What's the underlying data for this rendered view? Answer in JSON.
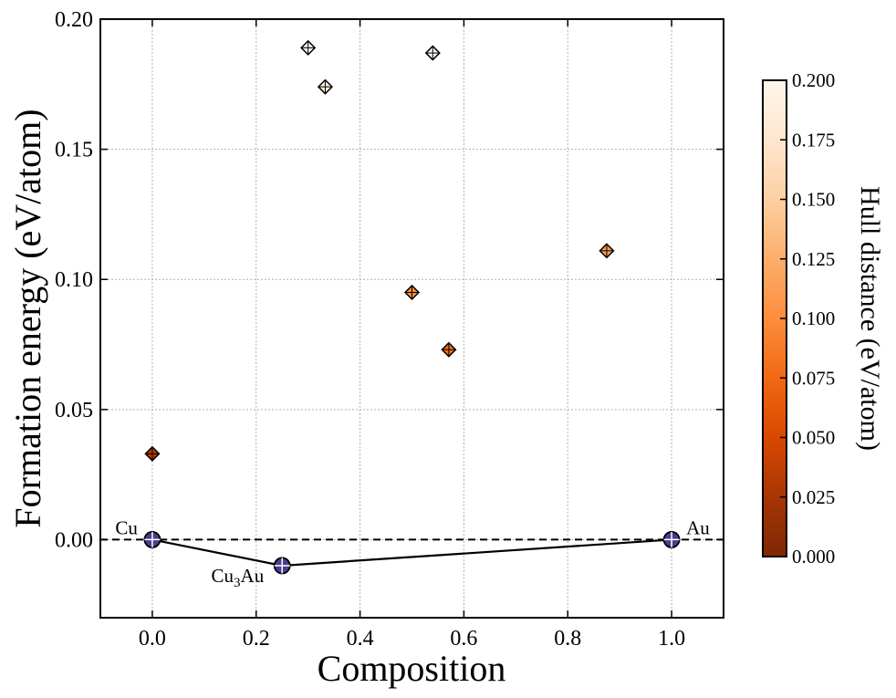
{
  "chart_data": {
    "type": "scatter",
    "xlabel": "Composition",
    "ylabel": "Formation energy (eV/atom)",
    "xlim": [
      -0.1,
      1.1
    ],
    "ylim": [
      -0.03,
      0.2
    ],
    "xticks": [
      "0.0",
      "0.2",
      "0.4",
      "0.6",
      "0.8",
      "1.0"
    ],
    "yticks": [
      "0.00",
      "0.05",
      "0.10",
      "0.15",
      "0.20"
    ],
    "grid": true,
    "colorbar": {
      "label": "Hull distance (eV/atom)",
      "min": 0.0,
      "max": 0.2,
      "colormap": "Oranges_r",
      "ticks": [
        "0.000",
        "0.025",
        "0.050",
        "0.075",
        "0.100",
        "0.125",
        "0.150",
        "0.175",
        "0.200"
      ]
    },
    "hull_points": [
      {
        "x": 0.0,
        "y": 0.0,
        "label": "Cu"
      },
      {
        "x": 0.25,
        "y": -0.01,
        "label": "Cu",
        "label_sub": "3",
        "label_suffix": "Au"
      },
      {
        "x": 1.0,
        "y": 0.0,
        "label": "Au"
      }
    ],
    "unstable_points": [
      {
        "x": 0.0,
        "y": 0.033,
        "hull_distance": 0.033
      },
      {
        "x": 0.3,
        "y": 0.189,
        "hull_distance": 0.2
      },
      {
        "x": 0.333,
        "y": 0.174,
        "hull_distance": 0.19
      },
      {
        "x": 0.5,
        "y": 0.095,
        "hull_distance": 0.1
      },
      {
        "x": 0.54,
        "y": 0.187,
        "hull_distance": 0.2
      },
      {
        "x": 0.571,
        "y": 0.073,
        "hull_distance": 0.078
      },
      {
        "x": 0.875,
        "y": 0.111,
        "hull_distance": 0.112
      }
    ],
    "colors": {
      "hull_marker": "#4b3d8f",
      "hull_line": "#000000",
      "zero_line": "#000000",
      "grid": "#b0b0b0"
    }
  }
}
